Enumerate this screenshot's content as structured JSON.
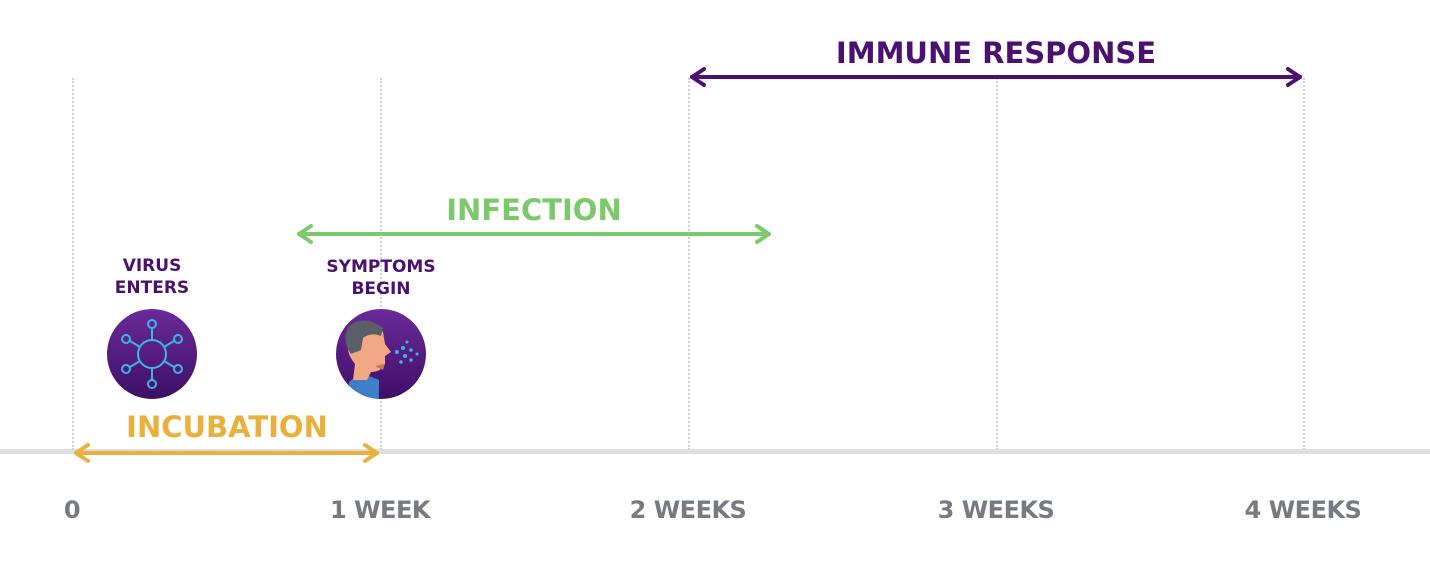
{
  "colors": {
    "immune": "#4a1170",
    "infection": "#7cc96b",
    "incubation": "#e9b13b",
    "event_label": "#4a1170",
    "axis": "#dedee0",
    "tick_label": "#777a82"
  },
  "axis": {
    "ticks": [
      "0",
      "1 WEEK",
      "2 WEEKS",
      "3 WEEKS",
      "4 WEEKS"
    ]
  },
  "phases": {
    "immune": {
      "label": "IMMUNE RESPONSE",
      "start_week": 2,
      "end_week": 4
    },
    "infection": {
      "label": "INFECTION",
      "start_week": 0.75,
      "end_week": 2.27
    },
    "incubation": {
      "label": "INCUBATION",
      "start_week": 0,
      "end_week": 1
    }
  },
  "events": {
    "virus": {
      "line1": "VIRUS",
      "line2": "ENTERS",
      "icon": "virus-icon"
    },
    "symptoms": {
      "line1": "SYMPTOMS",
      "line2": "BEGIN",
      "icon": "sneezing-person-icon"
    }
  }
}
